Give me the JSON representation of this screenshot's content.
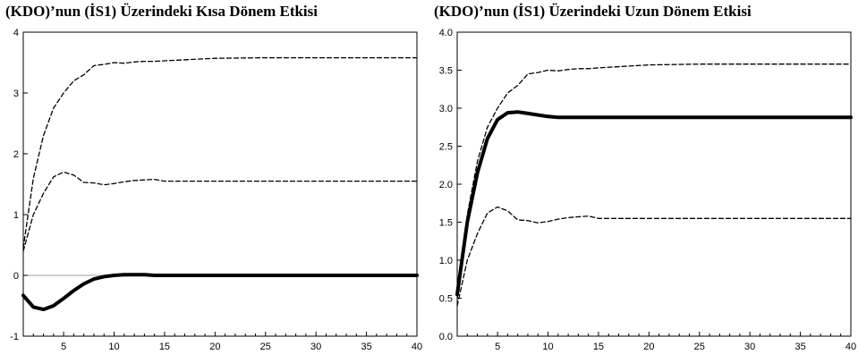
{
  "chart_data": [
    {
      "type": "line",
      "title": "(KDO)’nun (İS1) Üzerindeki Kısa Dönem Etkisi",
      "xlabel": "",
      "ylabel": "",
      "xlim": [
        1,
        40
      ],
      "ylim": [
        -1,
        4
      ],
      "xticks": [
        5,
        10,
        15,
        20,
        25,
        30,
        35,
        40
      ],
      "yticks": [
        -1,
        0,
        1,
        2,
        3,
        4
      ],
      "ytick_labels": [
        "-1",
        "0",
        "1",
        "2",
        "3",
        "4"
      ],
      "zero_line": true,
      "grid": false,
      "series": [
        {
          "style": "solid-thick",
          "x": [
            1,
            2,
            3,
            4,
            5,
            6,
            7,
            8,
            9,
            10,
            11,
            12,
            13,
            14,
            15,
            20,
            25,
            30,
            35,
            40
          ],
          "y": [
            -0.33,
            -0.52,
            -0.56,
            -0.5,
            -0.38,
            -0.25,
            -0.14,
            -0.06,
            -0.02,
            0.0,
            0.01,
            0.01,
            0.01,
            0.0,
            0.0,
            0.0,
            0.0,
            0.0,
            0.0,
            0.0
          ]
        },
        {
          "style": "dashed",
          "x": [
            1,
            2,
            3,
            4,
            5,
            6,
            7,
            8,
            9,
            10,
            11,
            12,
            13,
            14,
            15,
            20,
            25,
            30,
            35,
            40
          ],
          "y": [
            0.45,
            1.6,
            2.3,
            2.75,
            3.0,
            3.2,
            3.3,
            3.45,
            3.47,
            3.5,
            3.49,
            3.51,
            3.52,
            3.52,
            3.53,
            3.57,
            3.58,
            3.58,
            3.58,
            3.58
          ]
        },
        {
          "style": "dashed",
          "x": [
            1,
            2,
            3,
            4,
            5,
            6,
            7,
            8,
            9,
            10,
            11,
            12,
            13,
            14,
            15,
            20,
            25,
            30,
            35,
            40
          ],
          "y": [
            0.4,
            1.0,
            1.35,
            1.62,
            1.7,
            1.65,
            1.53,
            1.52,
            1.49,
            1.51,
            1.54,
            1.56,
            1.57,
            1.58,
            1.55,
            1.55,
            1.55,
            1.55,
            1.55,
            1.55
          ]
        }
      ]
    },
    {
      "type": "line",
      "title": "(KDO)’nun (İS1) Üzerindeki Uzun Dönem Etkisi",
      "xlabel": "",
      "ylabel": "",
      "xlim": [
        1,
        40
      ],
      "ylim": [
        0,
        4
      ],
      "xticks": [
        5,
        10,
        15,
        20,
        25,
        30,
        35,
        40
      ],
      "yticks": [
        0,
        0.5,
        1,
        1.5,
        2,
        2.5,
        3,
        3.5,
        4
      ],
      "ytick_labels": [
        "0.0",
        "0.5",
        "1.0",
        "1.5",
        "2.0",
        "2.5",
        "3.0",
        "3.5",
        "4.0"
      ],
      "zero_line": false,
      "grid": false,
      "series": [
        {
          "style": "solid-thick",
          "x": [
            1,
            2,
            3,
            4,
            5,
            6,
            7,
            8,
            9,
            10,
            11,
            12,
            13,
            14,
            15,
            20,
            25,
            30,
            35,
            40
          ],
          "y": [
            0.55,
            1.5,
            2.15,
            2.6,
            2.85,
            2.94,
            2.95,
            2.93,
            2.91,
            2.89,
            2.88,
            2.88,
            2.88,
            2.88,
            2.88,
            2.88,
            2.88,
            2.88,
            2.88,
            2.88
          ]
        },
        {
          "style": "dashed",
          "x": [
            1,
            2,
            3,
            4,
            5,
            6,
            7,
            8,
            9,
            10,
            11,
            12,
            13,
            14,
            15,
            20,
            25,
            30,
            35,
            40
          ],
          "y": [
            0.5,
            1.6,
            2.3,
            2.75,
            3.0,
            3.2,
            3.3,
            3.45,
            3.47,
            3.5,
            3.49,
            3.51,
            3.52,
            3.52,
            3.53,
            3.57,
            3.58,
            3.58,
            3.58,
            3.58
          ]
        },
        {
          "style": "dashed",
          "x": [
            1,
            2,
            3,
            4,
            5,
            6,
            7,
            8,
            9,
            10,
            11,
            12,
            13,
            14,
            15,
            20,
            25,
            30,
            35,
            40
          ],
          "y": [
            0.4,
            1.0,
            1.35,
            1.62,
            1.7,
            1.65,
            1.53,
            1.52,
            1.49,
            1.51,
            1.54,
            1.56,
            1.57,
            1.58,
            1.55,
            1.55,
            1.55,
            1.55,
            1.55,
            1.55
          ]
        }
      ]
    }
  ]
}
